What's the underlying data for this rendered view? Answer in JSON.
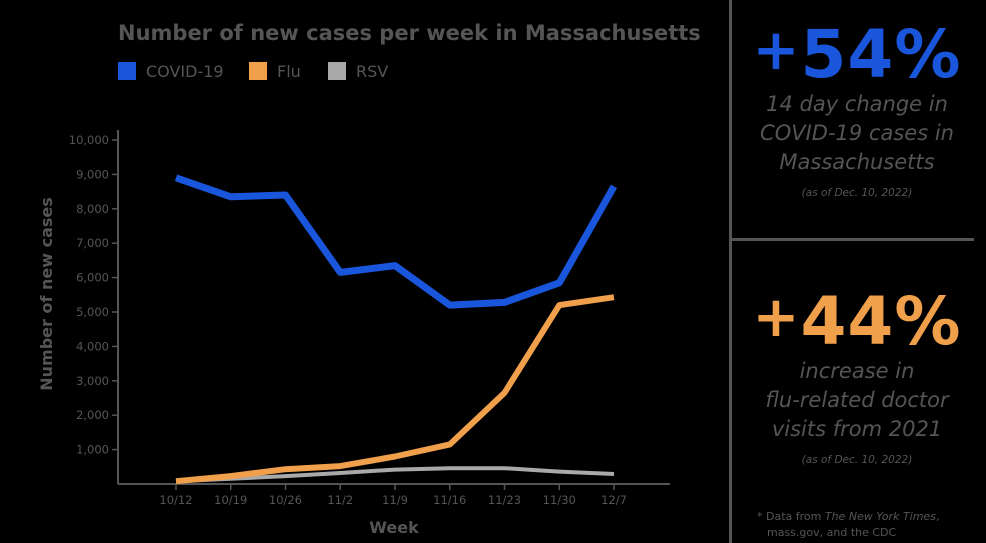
{
  "chart_data": {
    "type": "line",
    "title": "Number of new cases per week in Massachusetts",
    "xlabel": "Week",
    "ylabel": "Number of new cases",
    "categories": [
      "10/12",
      "10/19",
      "10/26",
      "11/2",
      "11/9",
      "11/16",
      "11/23",
      "11/30",
      "12/7"
    ],
    "y_ticks": [
      1000,
      2000,
      3000,
      4000,
      5000,
      6000,
      7000,
      8000,
      9000,
      10000
    ],
    "y_tick_labels": [
      "1,000",
      "2,000",
      "3,000",
      "4,000",
      "5,000",
      "6,000",
      "7,000",
      "8,000",
      "9,000",
      "10,000"
    ],
    "ylim": [
      0,
      10000
    ],
    "legend_position": "top-left",
    "series": [
      {
        "name": "COVID-19",
        "color": "#1a56db",
        "values": [
          8900,
          8350,
          8400,
          6150,
          6350,
          5200,
          5280,
          5850,
          8650
        ]
      },
      {
        "name": "Flu",
        "color": "#f0a04b",
        "values": [
          80,
          230,
          430,
          520,
          800,
          1150,
          2650,
          5200,
          5430
        ]
      },
      {
        "name": "RSV",
        "color": "#a9a9a9",
        "values": [
          80,
          150,
          230,
          320,
          420,
          460,
          460,
          360,
          290
        ]
      }
    ]
  },
  "stats": [
    {
      "value": "54%",
      "sign": "+",
      "color": "#1a56db",
      "desc_lines": [
        "14 day change in",
        "COVID-19 cases in",
        "Massachusetts"
      ],
      "note": "(as of Dec. 10, 2022)"
    },
    {
      "value": "44%",
      "sign": "+",
      "color": "#f0a04b",
      "desc_lines": [
        "increase in",
        "flu-related doctor",
        "visits from 2021"
      ],
      "note": "(as of Dec. 10, 2022)"
    }
  ],
  "footnote": {
    "prefix": "* Data from ",
    "source": "The New York Times",
    "suffix": ",",
    "line2": "mass.gov, and the CDC"
  }
}
